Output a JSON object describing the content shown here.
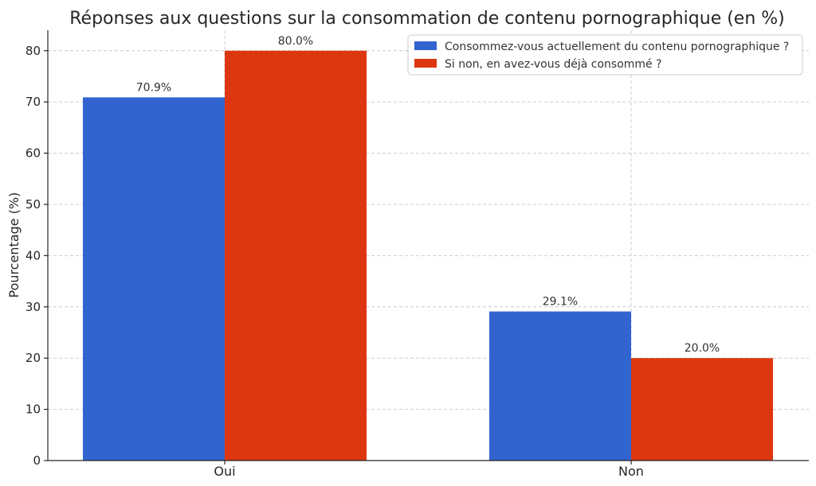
{
  "chart_data": {
    "type": "bar",
    "title": "Réponses aux questions sur la consommation de contenu pornographique (en %)",
    "xlabel": "",
    "ylabel": "Pourcentage (%)",
    "categories": [
      "Oui",
      "Non"
    ],
    "series": [
      {
        "name": "Consommez-vous actuellement du contenu pornographique ?",
        "values": [
          70.9,
          29.1
        ],
        "labels": [
          "70.9%",
          "29.1%"
        ],
        "color": "#3164cf"
      },
      {
        "name": "Si non, en avez-vous déjà consommé ?",
        "values": [
          80.0,
          20.0
        ],
        "labels": [
          "80.0%",
          "20.0%"
        ],
        "color": "#dd3711"
      }
    ],
    "ylim": [
      0,
      84
    ],
    "yticks": [
      0,
      10,
      20,
      30,
      40,
      50,
      60,
      70,
      80
    ],
    "grid": true,
    "legend": "top-right"
  }
}
